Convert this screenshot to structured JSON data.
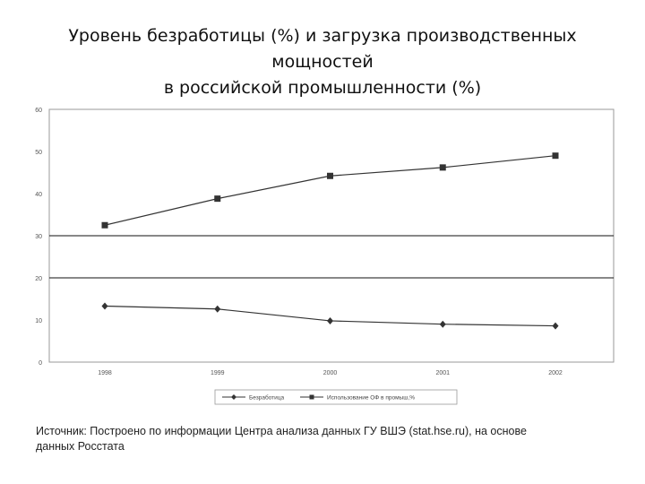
{
  "title": {
    "line1": "Уровень безработицы (%) и загрузка производственных",
    "line2": "мощностей",
    "line3": "в российской промышленности (%)"
  },
  "chart_data": {
    "type": "line",
    "x": [
      "1998",
      "1999",
      "2000",
      "2001",
      "2002"
    ],
    "yticks": [
      "60",
      "50",
      "40",
      "30",
      "20",
      "10",
      "0"
    ],
    "ylim": [
      0,
      60
    ],
    "grid": true,
    "legend_position": "bottom",
    "series": [
      {
        "name": "Безработица",
        "marker": "diamond",
        "values": [
          13.3,
          12.6,
          9.8,
          9.0,
          8.6
        ],
        "color": "#333333"
      },
      {
        "name": "Использование ОФ в промыш,%",
        "marker": "square",
        "values": [
          32.5,
          38.8,
          44.2,
          46.2,
          49.0
        ],
        "color": "#333333"
      }
    ]
  },
  "source": {
    "line1": "Источник: Построено по информации Центра анализа данных ГУ ВШЭ (stat.hse.ru), на основе",
    "line2": "данных Росстата"
  }
}
